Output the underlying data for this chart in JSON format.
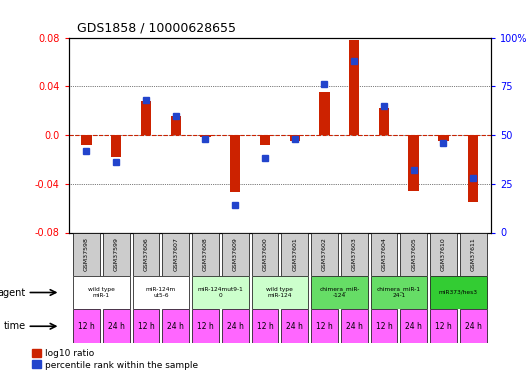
{
  "title": "GDS1858 / 10000628655",
  "samples": [
    "GSM37598",
    "GSM37599",
    "GSM37606",
    "GSM37607",
    "GSM37608",
    "GSM37609",
    "GSM37600",
    "GSM37601",
    "GSM37602",
    "GSM37603",
    "GSM37604",
    "GSM37605",
    "GSM37610",
    "GSM37611"
  ],
  "log10_ratio": [
    -0.008,
    -0.018,
    0.028,
    0.016,
    -0.002,
    -0.047,
    -0.008,
    -0.005,
    0.035,
    0.078,
    0.022,
    -0.046,
    -0.005,
    -0.055
  ],
  "percentile_raw": [
    42,
    36,
    68,
    60,
    48,
    14,
    38,
    48,
    76,
    88,
    65,
    32,
    46,
    28
  ],
  "ylim": [
    -0.08,
    0.08
  ],
  "yticks_left": [
    -0.08,
    -0.04,
    0.0,
    0.04,
    0.08
  ],
  "yticks_right": [
    0,
    25,
    50,
    75,
    100
  ],
  "bar_color": "#cc2200",
  "dot_color": "#2244cc",
  "zero_line_color": "#cc2200",
  "grid_color": "#000000",
  "agent_groups": [
    {
      "label": "wild type\nmiR-1",
      "cols": [
        0,
        1
      ],
      "bg": "#ffffff"
    },
    {
      "label": "miR-124m\nut5-6",
      "cols": [
        2,
        3
      ],
      "bg": "#ffffff"
    },
    {
      "label": "miR-124mut9-1\n0",
      "cols": [
        4,
        5
      ],
      "bg": "#ccffcc"
    },
    {
      "label": "wild type\nmiR-124",
      "cols": [
        6,
        7
      ],
      "bg": "#ccffcc"
    },
    {
      "label": "chimera_miR-\n-124",
      "cols": [
        8,
        9
      ],
      "bg": "#66dd66"
    },
    {
      "label": "chimera_miR-1\n24-1",
      "cols": [
        10,
        11
      ],
      "bg": "#66dd66"
    },
    {
      "label": "miR373/hes3",
      "cols": [
        12,
        13
      ],
      "bg": "#33cc33"
    }
  ],
  "time_labels": [
    "12 h",
    "24 h",
    "12 h",
    "24 h",
    "12 h",
    "24 h",
    "12 h",
    "24 h",
    "12 h",
    "24 h",
    "12 h",
    "24 h",
    "12 h",
    "24 h"
  ],
  "time_bg": "#ff66ff",
  "sample_bg": "#cccccc",
  "legend_red": "log10 ratio",
  "legend_blue": "percentile rank within the sample"
}
